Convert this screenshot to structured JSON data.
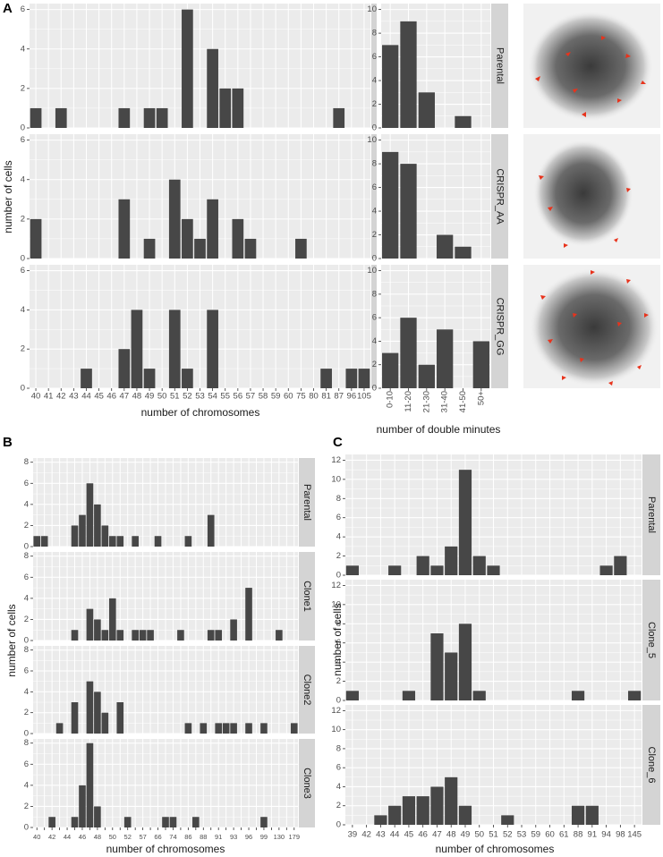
{
  "chart_data": [
    {
      "type": "bar",
      "panel": "A",
      "x_label": "number of chromosomes",
      "y_label": "number of cells",
      "categories": [
        "40",
        "41",
        "42",
        "43",
        "44",
        "45",
        "46",
        "47",
        "48",
        "49",
        "50",
        "51",
        "52",
        "53",
        "54",
        "55",
        "56",
        "57",
        "58",
        "59",
        "60",
        "75",
        "80",
        "81",
        "87",
        "96",
        "105"
      ],
      "facets": [
        {
          "values": [
            1,
            0,
            1,
            0,
            0,
            0,
            0,
            1,
            0,
            1,
            1,
            0,
            6,
            0,
            4,
            2,
            2,
            0,
            0,
            0,
            0,
            0,
            0,
            0,
            1,
            0,
            0
          ]
        },
        {
          "values": [
            2,
            0,
            0,
            0,
            0,
            0,
            0,
            3,
            0,
            1,
            0,
            4,
            2,
            1,
            3,
            0,
            2,
            1,
            0,
            0,
            0,
            1,
            0,
            0,
            0,
            0,
            0
          ]
        },
        {
          "values": [
            0,
            0,
            0,
            0,
            1,
            0,
            0,
            2,
            4,
            1,
            0,
            4,
            1,
            0,
            4,
            0,
            0,
            0,
            0,
            0,
            0,
            0,
            0,
            1,
            0,
            1,
            1
          ]
        }
      ],
      "color": "#474747",
      "ylim": [
        0,
        6.3
      ],
      "yticks": [
        0,
        2,
        4,
        6
      ],
      "grid": true
    },
    {
      "type": "bar",
      "x_label": "number of double minutes",
      "categories": [
        "0-10",
        "11-20",
        "21-30",
        "31-40",
        "41-50",
        "50+"
      ],
      "facets": [
        {
          "name": "Parental",
          "values": [
            7,
            9,
            3,
            0,
            1,
            0
          ]
        },
        {
          "name": "CRISPR_AA",
          "values": [
            9,
            8,
            0,
            2,
            1,
            0
          ]
        },
        {
          "name": "CRISPR_GG",
          "values": [
            3,
            6,
            2,
            5,
            0,
            4
          ]
        }
      ],
      "color": "#474747",
      "ylim": [
        0,
        10.5
      ],
      "yticks": [
        0,
        2,
        4,
        6,
        8,
        10
      ],
      "grid": true
    },
    {
      "type": "bar",
      "panel": "B",
      "x_label": "number of chromosomes",
      "y_label": "number of cells",
      "categories": [
        "40",
        null,
        "42",
        null,
        "44",
        null,
        "46",
        null,
        "48",
        null,
        "50",
        null,
        "52",
        null,
        "57",
        null,
        "66",
        null,
        "74",
        null,
        "86",
        null,
        "88",
        null,
        "91",
        null,
        "93",
        null,
        "96",
        null,
        "99",
        null,
        "130",
        null,
        "179"
      ],
      "facets": [
        {
          "name": "Parental",
          "values": [
            1,
            1,
            0,
            0,
            0,
            2,
            3,
            6,
            4,
            2,
            1,
            1,
            0,
            1,
            0,
            0,
            1,
            0,
            0,
            0,
            1,
            0,
            0,
            3,
            0,
            0,
            0,
            0,
            0,
            0,
            0,
            0,
            0,
            0,
            0
          ]
        },
        {
          "name": "Clone1",
          "values": [
            0,
            0,
            0,
            0,
            0,
            1,
            0,
            3,
            2,
            1,
            4,
            1,
            0,
            1,
            1,
            1,
            0,
            0,
            0,
            1,
            0,
            0,
            0,
            1,
            1,
            0,
            2,
            0,
            5,
            0,
            0,
            0,
            1,
            0,
            0
          ]
        },
        {
          "name": "Clone2",
          "values": [
            0,
            0,
            0,
            1,
            0,
            3,
            0,
            5,
            4,
            2,
            0,
            3,
            0,
            0,
            0,
            0,
            0,
            0,
            0,
            0,
            1,
            0,
            1,
            0,
            1,
            1,
            1,
            0,
            1,
            0,
            1,
            0,
            0,
            0,
            1
          ]
        },
        {
          "name": "Clone3",
          "values": [
            0,
            0,
            1,
            0,
            0,
            1,
            4,
            8,
            2,
            0,
            0,
            0,
            1,
            0,
            0,
            0,
            0,
            1,
            1,
            0,
            0,
            1,
            0,
            0,
            0,
            0,
            0,
            0,
            0,
            0,
            1,
            0,
            0,
            0,
            0
          ]
        }
      ],
      "color": "#474747",
      "ylim": [
        0,
        8.4
      ],
      "yticks": [
        0,
        2,
        4,
        6,
        8
      ],
      "grid": true
    },
    {
      "type": "bar",
      "panel": "C",
      "x_label": "number of chromosomes",
      "y_label": "number of cells",
      "categories": [
        "39",
        "42",
        "43",
        "44",
        "45",
        "46",
        "47",
        "48",
        "49",
        "50",
        "51",
        "52",
        "53",
        "59",
        "60",
        "61",
        "88",
        "91",
        "94",
        "98",
        "145"
      ],
      "facets": [
        {
          "name": "Parental",
          "values": [
            1,
            0,
            0,
            1,
            0,
            2,
            1,
            3,
            11,
            2,
            1,
            0,
            0,
            0,
            0,
            0,
            0,
            0,
            1,
            2,
            0
          ]
        },
        {
          "name": "Clone_5",
          "values": [
            1,
            0,
            0,
            0,
            1,
            0,
            7,
            5,
            8,
            1,
            0,
            0,
            0,
            0,
            0,
            0,
            1,
            0,
            0,
            0,
            1
          ]
        },
        {
          "name": "Clone_6",
          "values": [
            0,
            0,
            1,
            2,
            3,
            3,
            4,
            5,
            2,
            0,
            0,
            1,
            0,
            0,
            0,
            0,
            2,
            2,
            0,
            0,
            0
          ]
        }
      ],
      "color": "#474747",
      "ylim": [
        0,
        12.6
      ],
      "yticks": [
        0,
        2,
        4,
        6,
        8,
        10,
        12
      ],
      "grid": true
    }
  ]
}
